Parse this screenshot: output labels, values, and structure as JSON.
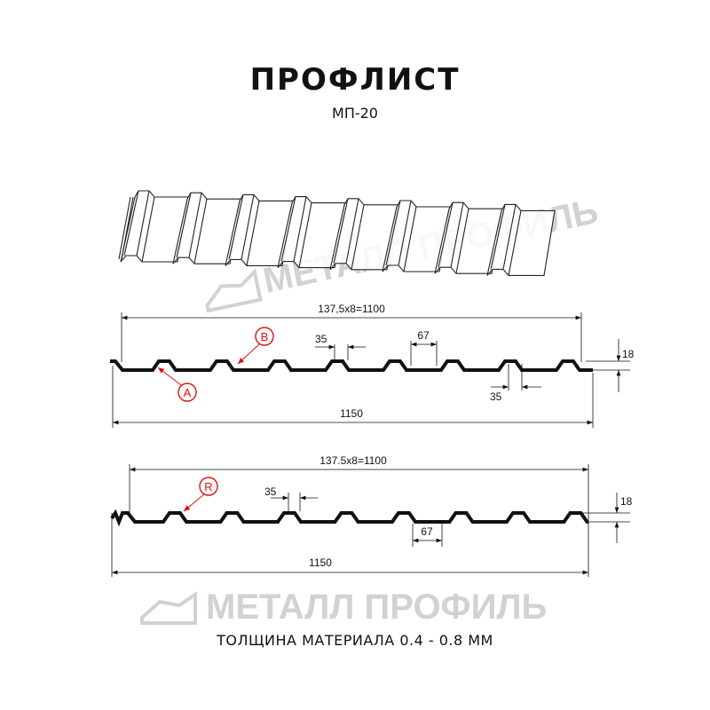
{
  "title": "ПРОФЛИСТ",
  "subtitle": "МП-20",
  "footer": "ТОЛЩИНА МАТЕРИАЛА 0.4 - 0.8 ММ",
  "watermark": "МЕТАЛЛ ПРОФИЛЬ",
  "colors": {
    "profile": "#111111",
    "callout": "#e01010",
    "watermark": "#d2d2d2"
  },
  "profile_a": {
    "pitch_dim": "137,5x8=1100",
    "width_dim": "1150",
    "height_dim": "18",
    "top_dim": "35",
    "top_pitch_dim": "67",
    "bottom_dim": "35",
    "callouts": [
      "A",
      "B"
    ]
  },
  "profile_b": {
    "pitch_dim": "137.5x8=1100",
    "width_dim": "1150",
    "height_dim": "18",
    "top_dim": "35",
    "bottom_dim": "67",
    "callouts": [
      "R"
    ]
  }
}
